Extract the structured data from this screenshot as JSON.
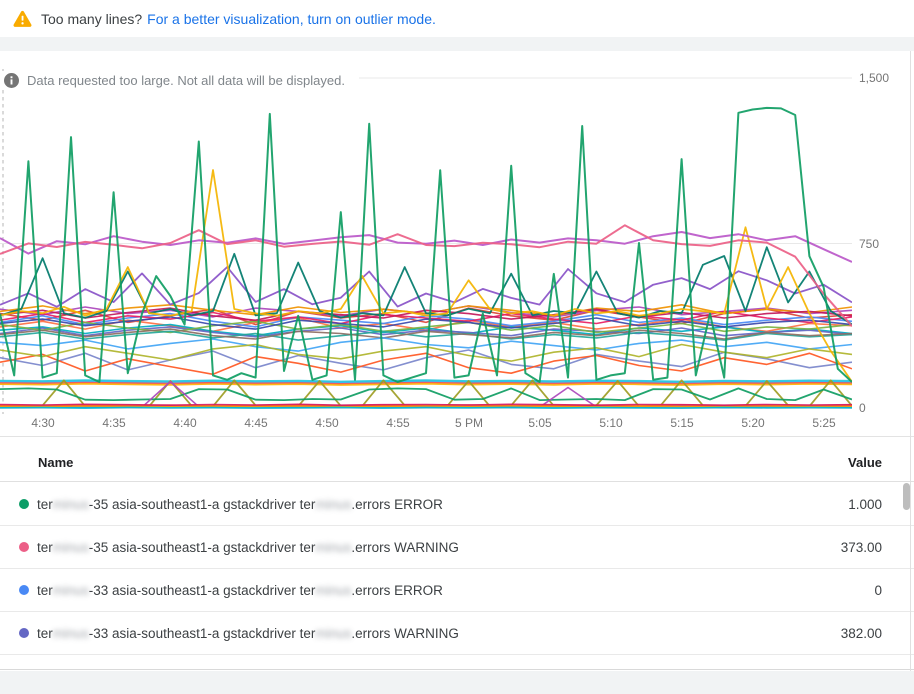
{
  "banner": {
    "text": "Too many lines?",
    "link": "For a better visualization, turn on outlier mode.",
    "warning_color": "#f9ab00",
    "link_color": "#1a73e8"
  },
  "notice": {
    "icon": "info-circle",
    "text": "Data requested too large. Not all data will be displayed."
  },
  "chart_data": {
    "type": "line",
    "title": "",
    "xlabel": "",
    "ylabel": "",
    "ylim": [
      0,
      1500
    ],
    "y_ticks": [
      "1,500",
      "750",
      "0"
    ],
    "y_gridlines": [
      1500,
      750,
      0
    ],
    "x_ticks": [
      "4:30",
      "4:35",
      "4:40",
      "4:45",
      "4:50",
      "4:55",
      "5 PM",
      "5:05",
      "5:10",
      "5:15",
      "5:20",
      "5:25"
    ],
    "grid": "horizontal",
    "legend_position": "table-below",
    "series": [
      {
        "color": "#db4437",
        "values": [
          430,
          400,
          445,
          390,
          420,
          450,
          380,
          440,
          410,
          430,
          390,
          455,
          420,
          400,
          445,
          415,
          385,
          430,
          450,
          410,
          425
        ]
      },
      {
        "color": "#ff7043",
        "values": [
          370,
          395,
          360,
          400,
          375,
          350,
          390,
          410,
          365,
          385,
          355,
          400,
          370,
          390,
          360,
          380,
          405,
          370,
          350,
          385,
          375
        ]
      },
      {
        "color": "#4989f5",
        "values": [
          390,
          420,
          380,
          410,
          430,
          395,
          370,
          415,
          400,
          385,
          420,
          405,
          375,
          395,
          425,
          390,
          410,
          380,
          400,
          415,
          395
        ]
      },
      {
        "color": "#00acc1",
        "values": [
          355,
          370,
          340,
          365,
          380,
          350,
          330,
          360,
          375,
          345,
          365,
          340,
          370,
          355,
          335,
          365,
          350,
          370,
          345,
          360,
          340
        ]
      },
      {
        "color": "#ab47bc",
        "values": [
          450,
          425,
          460,
          430,
          445,
          415,
          455,
          440,
          420,
          450,
          430,
          465,
          435,
          415,
          445,
          460,
          425,
          440,
          455,
          430,
          445
        ]
      },
      {
        "color": "#6467c4",
        "values": [
          340,
          365,
          330,
          355,
          370,
          345,
          325,
          350,
          365,
          335,
          355,
          345,
          330,
          360,
          350,
          340,
          365,
          330,
          345,
          355,
          335
        ]
      },
      {
        "color": "#e91e63",
        "values": [
          400,
          430,
          390,
          420,
          405,
          435,
          395,
          415,
          385,
          425,
          410,
          395,
          430,
          405,
          385,
          420,
          400,
          440,
          410,
          390,
          415
        ]
      },
      {
        "color": "#7cb342",
        "values": [
          380,
          355,
          390,
          365,
          345,
          375,
          395,
          360,
          380,
          350,
          370,
          390,
          355,
          375,
          345,
          365,
          385,
          350,
          370,
          360,
          380
        ]
      },
      {
        "color": "#26a69a",
        "values": [
          325,
          345,
          315,
          335,
          350,
          320,
          340,
          310,
          330,
          350,
          325,
          340,
          315,
          335,
          320,
          345,
          330,
          310,
          340,
          325,
          335
        ]
      },
      {
        "color": "#f09300",
        "values": [
          440,
          465,
          430,
          455,
          470,
          445,
          425,
          460,
          435,
          450,
          430,
          465,
          445,
          420,
          455,
          440,
          470,
          430,
          450,
          435,
          460
        ]
      },
      {
        "color": "#3949ab",
        "values": [
          385,
          405,
          375,
          395,
          415,
          380,
          360,
          400,
          385,
          370,
          405,
          390,
          365,
          385,
          410,
          375,
          395,
          370,
          390,
          400,
          380
        ]
      },
      {
        "color": "#c2185b",
        "values": [
          425,
          445,
          410,
          435,
          455,
          420,
          400,
          440,
          425,
          410,
          445,
          430,
          405,
          425,
          450,
          415,
          435,
          410,
          430,
          440,
          420
        ]
      },
      {
        "color": "#8d6e63",
        "values": [
          335,
          355,
          325,
          345,
          360,
          330,
          315,
          350,
          340,
          320,
          350,
          335,
          320,
          345,
          330,
          355,
          340,
          315,
          345,
          330,
          340
        ]
      },
      {
        "color": "#42a5f5",
        "values": [
          300,
          285,
          310,
          270,
          295,
          315,
          280,
          260,
          300,
          320,
          290,
          275,
          305,
          285,
          265,
          295,
          310,
          280,
          300,
          270,
          290
        ]
      },
      {
        "color": "#7986cb",
        "values": [
          230,
          195,
          250,
          175,
          220,
          260,
          185,
          240,
          205,
          175,
          230,
          265,
          200,
          180,
          245,
          215,
          190,
          255,
          225,
          185,
          210
        ]
      },
      {
        "color": "#ff5722",
        "values": [
          210,
          245,
          170,
          225,
          190,
          155,
          235,
          205,
          165,
          220,
          250,
          185,
          160,
          215,
          240,
          195,
          170,
          230,
          200,
          250,
          180
        ]
      },
      {
        "color": "#afb42b",
        "values": [
          265,
          235,
          280,
          250,
          220,
          270,
          290,
          245,
          225,
          260,
          280,
          240,
          215,
          255,
          275,
          235,
          290,
          255,
          230,
          270,
          245
        ]
      },
      {
        "color": "#29b6f6",
        "values": [
          122,
          120,
          124,
          121,
          119,
          123,
          120,
          122,
          118,
          121,
          124,
          120,
          122,
          119,
          123,
          121,
          118,
          122,
          120,
          123,
          121
        ]
      },
      {
        "color": "#ef5350",
        "values": [
          116,
          114,
          118,
          115,
          113,
          117,
          114,
          116,
          112,
          115,
          118,
          114,
          116,
          113,
          117,
          115,
          112,
          116,
          114,
          117,
          115
        ]
      },
      {
        "color": "#ffb300",
        "values": [
          110,
          108,
          112,
          109,
          107,
          111,
          108,
          110,
          106,
          109,
          112,
          108,
          110,
          107,
          111,
          109,
          106,
          110,
          108,
          111,
          109
        ]
      },
      {
        "color": "#26c6da",
        "values": [
          127,
          125,
          129,
          126,
          124,
          128,
          125,
          127,
          123,
          126,
          129,
          125,
          127,
          124,
          128,
          126,
          123,
          127,
          125,
          128,
          126
        ]
      },
      {
        "color": "#9e9d24",
        "w": 1.8,
        "values": [
          12,
          10,
          14,
          128,
          10,
          12,
          14,
          10,
          125,
          12,
          10,
          128,
          14,
          12,
          10,
          125,
          12,
          10,
          128,
          14,
          10,
          12,
          125,
          10,
          14,
          128,
          12,
          10,
          14,
          125,
          10,
          12,
          128,
          14,
          10,
          12,
          125,
          14,
          10,
          128,
          12
        ]
      },
      {
        "color": "#0f9d63",
        "w": 1.8,
        "values": [
          88,
          91,
          86,
          40,
          38,
          41,
          43,
          88,
          86,
          40,
          38,
          43,
          41,
          86,
          91,
          88,
          40,
          43,
          91,
          38,
          41,
          43,
          38,
          88,
          86,
          41,
          91,
          43,
          38,
          86,
          41
        ]
      },
      {
        "color": "#ab47bc",
        "values": [
          8,
          6,
          9,
          7,
          8,
          6,
          122,
          8,
          7,
          9,
          6,
          8,
          7,
          9,
          8,
          6,
          7,
          9,
          8,
          6,
          95,
          7,
          8,
          6,
          9,
          7,
          8,
          9,
          6,
          8,
          7
        ]
      },
      {
        "color": "#f44336",
        "values": [
          14,
          12,
          16,
          13,
          15,
          11,
          14,
          16,
          12,
          15,
          13,
          16,
          12,
          14,
          15,
          11,
          16,
          13,
          14,
          12,
          15
        ]
      },
      {
        "color": "#2196f3",
        "values": [
          6,
          8,
          5,
          7,
          9,
          6,
          8,
          5,
          7,
          6,
          9,
          7,
          5,
          8,
          6,
          7,
          9,
          5,
          7,
          8,
          6
        ]
      },
      {
        "color": "#ff9800",
        "values": [
          10,
          9,
          12,
          10,
          8,
          11,
          9,
          12,
          8,
          10,
          11,
          9,
          12,
          10,
          8,
          11,
          9,
          10,
          12,
          9,
          10
        ]
      },
      {
        "color": "#00bcd4",
        "values": [
          3,
          4,
          2,
          5,
          3,
          4,
          2,
          3,
          5,
          2,
          4,
          3,
          5,
          2,
          4,
          3,
          2,
          5,
          3,
          4,
          3
        ]
      },
      {
        "color": "#d81b60",
        "values": [
          18,
          16,
          19,
          17,
          15,
          18,
          16,
          19,
          15,
          17,
          18,
          16,
          19,
          17,
          15,
          18,
          17,
          15,
          18,
          16,
          17
        ]
      },
      {
        "color": "#8952c8",
        "w": 1.8,
        "values": [
          470,
          522,
          461,
          541,
          482,
          612,
          471,
          523,
          641,
          483,
          541,
          472,
          502,
          621,
          462,
          521,
          481,
          542,
          501,
          471,
          632,
          522,
          482,
          561,
          591,
          541,
          622,
          581,
          521,
          561,
          481
        ]
      },
      {
        "color": "#00796b",
        "w": 1.8,
        "values": [
          422,
          451,
          681,
          432,
          411,
          442,
          621,
          432,
          451,
          422,
          442,
          701,
          422,
          432,
          661,
          442,
          412,
          432,
          422,
          641,
          432,
          422,
          452,
          432,
          611,
          422,
          442,
          432,
          621,
          432,
          412,
          442,
          432,
          651,
          691,
          442,
          731,
          481,
          621,
          442,
          381
        ]
      },
      {
        "color": "#f4b400",
        "w": 1.8,
        "values": [
          422,
          441,
          432,
          461,
          421,
          451,
          641,
          432,
          421,
          441,
          1081,
          451,
          431,
          421,
          441,
          431,
          451,
          601,
          431,
          441,
          421,
          431,
          581,
          451,
          431,
          441,
          421,
          451,
          431,
          441,
          421,
          431,
          451,
          441,
          431,
          821,
          451,
          641,
          431,
          261,
          121
        ]
      },
      {
        "color": "#bb58c9",
        "w": 2,
        "values": [
          772,
          702,
          758,
          744,
          781,
          756,
          741,
          762,
          751,
          771,
          746,
          761,
          776,
          786,
          752,
          747,
          761,
          741,
          766,
          752,
          771,
          762,
          747,
          781,
          800,
          772,
          790,
          762,
          781,
          722,
          664
        ]
      },
      {
        "color": "#ec5f87",
        "w": 2,
        "values": [
          700,
          748,
          732,
          755,
          742,
          726,
          750,
          808,
          745,
          762,
          733,
          746,
          757,
          742,
          790,
          741,
          736,
          751,
          744,
          731,
          756,
          747,
          830,
          762,
          745,
          737,
          762,
          752,
          688,
          520,
          373
        ]
      },
      {
        "color": "#0f9d63",
        "w": 2,
        "values": [
          430,
          150,
          1120,
          140,
          160,
          1230,
          150,
          120,
          980,
          160,
          430,
          600,
          510,
          380,
          1210,
          150,
          130,
          160,
          140,
          1335,
          170,
          420,
          130,
          150,
          890,
          130,
          1290,
          150,
          120,
          140,
          160,
          1080,
          140,
          150,
          430,
          150,
          1100,
          160,
          120,
          610,
          140,
          1280,
          130,
          150,
          160,
          750,
          130,
          140,
          1130,
          150,
          430,
          140,
          1340,
          1355,
          1362,
          1360,
          1330,
          690,
          550,
          180,
          120
        ]
      }
    ]
  },
  "table": {
    "columns": [
      "Name",
      "Value"
    ],
    "rows": [
      {
        "color": "#0d9d67",
        "value": "1.000",
        "name_parts": [
          {
            "t": "ter"
          },
          {
            "t": "minus",
            "blur": true
          },
          {
            "t": "-35 asia-southeast1-a gstackdriver ter"
          },
          {
            "t": "minus",
            "blur": true
          },
          {
            "t": ".errors ERROR"
          }
        ]
      },
      {
        "color": "#ec5f87",
        "value": "373.00",
        "name_parts": [
          {
            "t": "ter"
          },
          {
            "t": "minus",
            "blur": true
          },
          {
            "t": "-35 asia-southeast1-a gstackdriver ter"
          },
          {
            "t": "minus",
            "blur": true
          },
          {
            "t": ".errors WARNING"
          }
        ]
      },
      {
        "color": "#4989f5",
        "value": "0",
        "name_parts": [
          {
            "t": "ter"
          },
          {
            "t": "minus",
            "blur": true
          },
          {
            "t": "-33 asia-southeast1-a gstackdriver ter"
          },
          {
            "t": "minus",
            "blur": true
          },
          {
            "t": ".errors ERROR"
          }
        ]
      },
      {
        "color": "#6467c4",
        "value": "382.00",
        "name_parts": [
          {
            "t": "ter"
          },
          {
            "t": "minus",
            "blur": true
          },
          {
            "t": "-33 asia-southeast1-a gstackdriver ter"
          },
          {
            "t": "minus",
            "blur": true
          },
          {
            "t": ".errors WARNING"
          }
        ]
      }
    ]
  }
}
